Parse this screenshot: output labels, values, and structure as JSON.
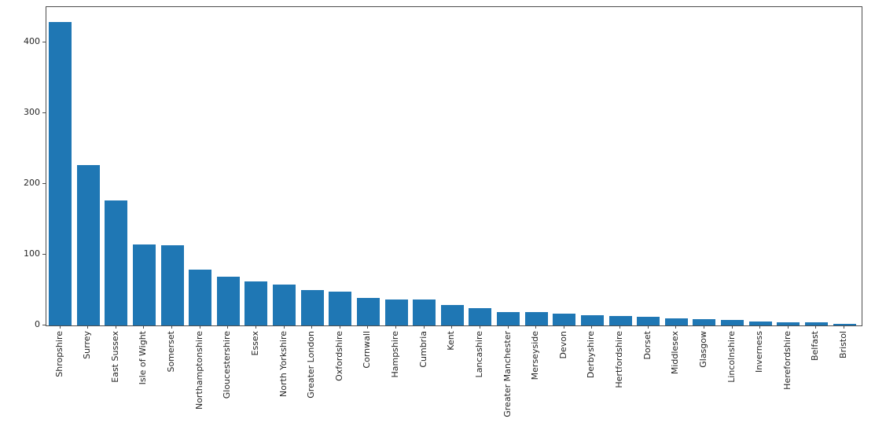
{
  "chart_data": {
    "type": "bar",
    "title": "",
    "xlabel": "",
    "ylabel": "",
    "categories": [
      "Shropshire",
      "Surrey",
      "East Sussex",
      "Isle of Wight",
      "Somerset",
      "Northamptonshire",
      "Gloucestershire",
      "Essex",
      "North Yorkshire",
      "Greater London",
      "Oxfordshire",
      "Cornwall",
      "Hampshire",
      "Cumbria",
      "Kent",
      "Lancashire",
      "Greater Manchester",
      "Merseyside",
      "Devon",
      "Derbyshire",
      "Hertfordshire",
      "Dorset",
      "Middlesex",
      "Glasgow",
      "Lincolnshire",
      "Inverness",
      "Herefordshire",
      "Belfast",
      "Bristol"
    ],
    "values": [
      429,
      227,
      177,
      114,
      113,
      79,
      69,
      62,
      58,
      50,
      48,
      39,
      37,
      37,
      29,
      24,
      19,
      19,
      17,
      14,
      13,
      12,
      10,
      9,
      8,
      6,
      5,
      4,
      2
    ],
    "yticks": [
      0,
      100,
      200,
      300,
      400
    ],
    "ylim": [
      0,
      450
    ],
    "grid": false,
    "legend": null,
    "bar_color": "#1f77b4",
    "x_label_rotation_deg": 90
  },
  "figure_style": {
    "background_color": "#ffffff",
    "spine_color": "#4d4d4d",
    "text_color": "#262626"
  }
}
